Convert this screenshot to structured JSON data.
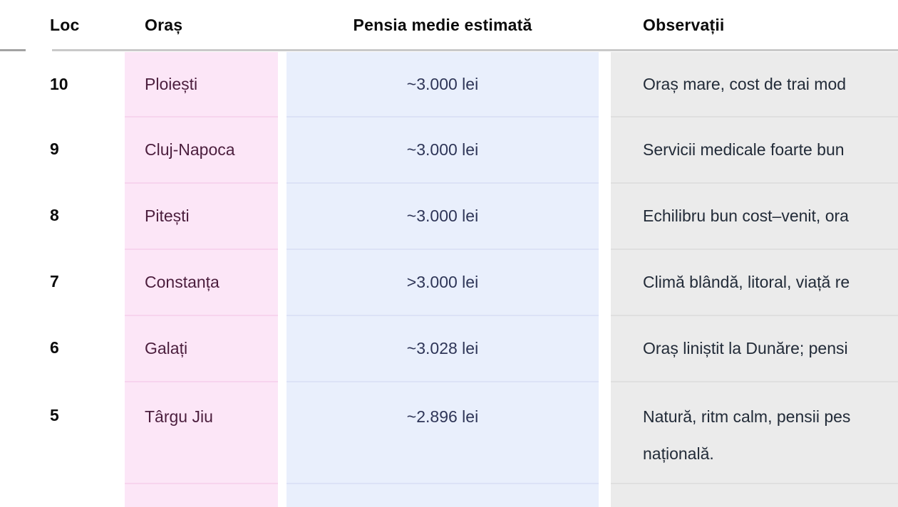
{
  "table": {
    "headers": {
      "rank": "Loc",
      "city": "Oraș",
      "pension": "Pensia medie estimată",
      "notes": "Observații"
    },
    "rows": [
      {
        "rank": "10",
        "city": "Ploiești",
        "pension": "~3.000 lei",
        "notes": "Oraș mare, cost de trai mod"
      },
      {
        "rank": "9",
        "city": "Cluj-Napoca",
        "pension": "~3.000 lei",
        "notes": "Servicii medicale foarte bun"
      },
      {
        "rank": "8",
        "city": "Pitești",
        "pension": "~3.000 lei",
        "notes": "Echilibru bun cost–venit, ora"
      },
      {
        "rank": "7",
        "city": "Constanța",
        "pension": ">3.000 lei",
        "notes": "Climă blândă, litoral, viață re"
      },
      {
        "rank": "6",
        "city": "Galați",
        "pension": "~3.028 lei",
        "notes": "Oraș liniștit la Dunăre; pensi"
      },
      {
        "rank": "5",
        "city": "Târgu Jiu",
        "pension": "~2.896 lei",
        "notes": "Natură, ritm calm, pensii pes",
        "notes_line2": "națională."
      }
    ],
    "colors": {
      "city_column_bg": "#fce6f7",
      "pension_column_bg": "#e9effc",
      "notes_column_bg": "#ebebeb",
      "city_text": "#4b1e3d",
      "pension_text": "#2e3557",
      "notes_text": "#222b38",
      "header_text": "#0b0b0b",
      "header_border": "#c9c9c9",
      "city_divider": "#f7d4ee",
      "pension_divider": "#dce2f6",
      "notes_divider": "#dfdfdf"
    }
  }
}
